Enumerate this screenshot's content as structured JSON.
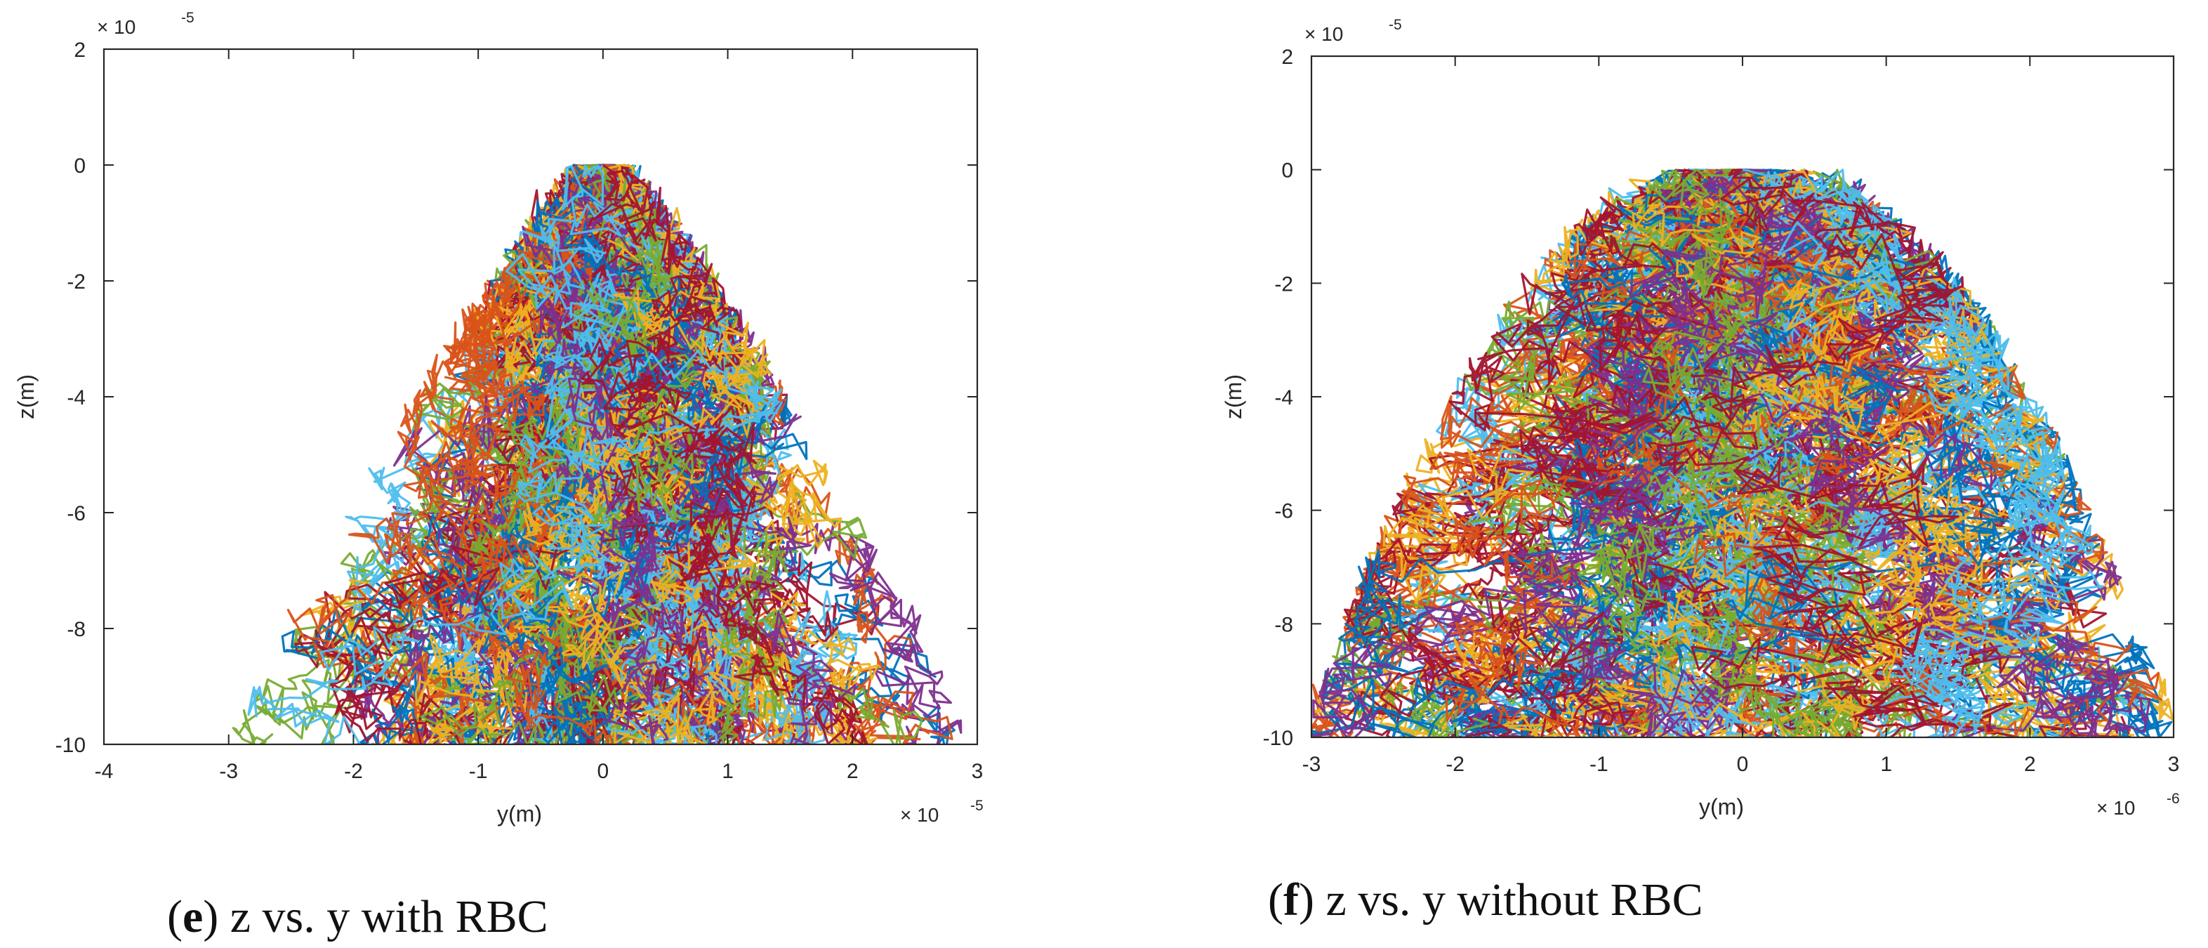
{
  "colors": {
    "series": [
      "#0072BD",
      "#D95319",
      "#EDB120",
      "#7E2F8E",
      "#77AC30",
      "#4DBEEE",
      "#A2142F"
    ],
    "axis": "#262626",
    "background": "#ffffff"
  },
  "chart_data": [
    {
      "id": "e",
      "type": "line",
      "title": "",
      "xlabel": "y(m)",
      "ylabel": "z(m)",
      "x_exponent": "× 10",
      "x_exponent_power": "-5",
      "y_exponent": "× 10",
      "y_exponent_power": "-5",
      "xlim": [
        -4,
        3
      ],
      "ylim": [
        -10,
        2
      ],
      "xticks": [
        "-4",
        "-3",
        "-2",
        "-1",
        "0",
        "1",
        "2",
        "3"
      ],
      "yticks": [
        "-10",
        "-8",
        "-6",
        "-4",
        "-2",
        "0",
        "2"
      ],
      "grid": false,
      "description_of_data": "Many random-walk trajectories starting at (0,0) and descending to z = -10; lateral spread widens with depth (cone shape) reaching about -3 to 2.8 at the bottom.",
      "series_spread": {
        "start": [
          0,
          0
        ],
        "end_z": -10,
        "spread_at_bottom": 2.4,
        "trajectory_count": 84
      },
      "caption_letter": "e",
      "caption_text": ") z vs. y with RBC",
      "caption_open": "("
    },
    {
      "id": "f",
      "type": "line",
      "title": "",
      "xlabel": "y(m)",
      "ylabel": "z(m)",
      "x_exponent": "× 10",
      "x_exponent_power": "-6",
      "y_exponent": "× 10",
      "y_exponent_power": "-5",
      "xlim": [
        -3,
        3
      ],
      "ylim": [
        -10,
        2
      ],
      "xticks": [
        "-3",
        "-2",
        "-1",
        "0",
        "1",
        "2",
        "3"
      ],
      "yticks": [
        "-10",
        "-8",
        "-6",
        "-4",
        "-2",
        "0",
        "2"
      ],
      "grid": false,
      "description_of_data": "Many random-walk trajectories starting at (0,0) and descending to z = -10; bell-shaped envelope spreading to about -3 to 2.7 at the bottom.",
      "series_spread": {
        "start": [
          0,
          0
        ],
        "end_z": -10,
        "spread_at_bottom": 2.5,
        "trajectory_count": 84
      },
      "caption_letter": "f",
      "caption_text": ") z vs. y without RBC",
      "caption_open": "("
    }
  ]
}
